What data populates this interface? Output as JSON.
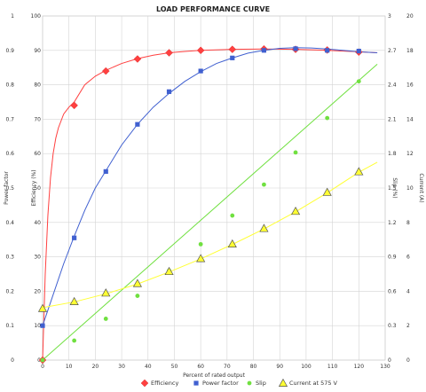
{
  "chart_data": {
    "type": "line",
    "title": "LOAD PERFORMANCE CURVE",
    "xlabel": "Percent of rated output",
    "x_ticks": [
      "0",
      "10",
      "20",
      "30",
      "40",
      "50",
      "60",
      "70",
      "80",
      "90",
      "100",
      "110",
      "120",
      "130"
    ],
    "xlim": [
      0,
      130
    ],
    "grid": true,
    "legend_position": "bottom",
    "axes": {
      "power_factor": {
        "label": "Power factor",
        "side": "left-outer",
        "range": [
          0,
          1
        ],
        "ticks": [
          "0",
          "0.1",
          "0.2",
          "0.3",
          "0.4",
          "0.5",
          "0.6",
          "0.7",
          "0.8",
          "0.9",
          "1"
        ]
      },
      "efficiency": {
        "label": "Efficiency (%)",
        "side": "left-inner",
        "range": [
          0,
          100
        ],
        "ticks": [
          "0",
          "10",
          "20",
          "30",
          "40",
          "50",
          "60",
          "70",
          "80",
          "90",
          "100"
        ]
      },
      "slip": {
        "label": "Slip (%)",
        "side": "right-inner",
        "range": [
          0,
          3
        ],
        "ticks": [
          "0",
          "0.3",
          "0.6",
          "0.9",
          "1.2",
          "1.5",
          "1.8",
          "2.1",
          "2.4",
          "2.7",
          "3"
        ]
      },
      "current": {
        "label": "Current (A)",
        "side": "right-outer",
        "range": [
          0,
          20
        ],
        "ticks": [
          "0",
          "2",
          "4",
          "6",
          "8",
          "10",
          "12",
          "14",
          "16",
          "18",
          "20"
        ]
      }
    },
    "series": [
      {
        "name": "Efficiency",
        "axis": "efficiency",
        "color": "#ff4040",
        "marker": "diamond",
        "x": [
          0,
          12,
          24,
          36,
          48,
          60,
          72,
          84,
          96,
          108,
          120
        ],
        "values": [
          0,
          74,
          84,
          87.5,
          89.3,
          90,
          90.3,
          90.4,
          90.3,
          90.1,
          89.5
        ],
        "curve_x": [
          0,
          1,
          2,
          3,
          4,
          5,
          6,
          8,
          10,
          12,
          16,
          20,
          24,
          30,
          36,
          42,
          48,
          54,
          60,
          72,
          84,
          96,
          108,
          120,
          127
        ],
        "curve_y": [
          0,
          25,
          42,
          53,
          60,
          64.5,
          67.5,
          71.5,
          73.5,
          75,
          80,
          82.5,
          84.2,
          86.2,
          87.6,
          88.6,
          89.3,
          89.7,
          90.0,
          90.3,
          90.4,
          90.3,
          90.0,
          89.6,
          89.3
        ]
      },
      {
        "name": "Power factor",
        "axis": "power_factor",
        "color": "#4060d0",
        "marker": "square",
        "x": [
          0,
          12,
          24,
          36,
          48,
          60,
          72,
          84,
          96,
          108,
          120
        ],
        "values": [
          0.1,
          0.355,
          0.548,
          0.685,
          0.78,
          0.84,
          0.878,
          0.9,
          0.905,
          0.9,
          0.898
        ],
        "curve_x": [
          0,
          4,
          8,
          12,
          16,
          20,
          24,
          30,
          36,
          42,
          48,
          54,
          60,
          66,
          72,
          78,
          84,
          90,
          96,
          102,
          108,
          114,
          120,
          127
        ],
        "curve_y": [
          0.1,
          0.19,
          0.28,
          0.36,
          0.435,
          0.5,
          0.55,
          0.625,
          0.685,
          0.735,
          0.775,
          0.81,
          0.838,
          0.862,
          0.878,
          0.892,
          0.9,
          0.906,
          0.908,
          0.907,
          0.904,
          0.9,
          0.896,
          0.893
        ]
      },
      {
        "name": "Slip",
        "axis": "slip",
        "color": "#70e040",
        "marker": "circle",
        "x": [
          0,
          12,
          24,
          36,
          48,
          60,
          72,
          84,
          96,
          108,
          120
        ],
        "values": [
          0,
          0.17,
          0.36,
          0.56,
          0.78,
          1.01,
          1.26,
          1.53,
          1.81,
          2.11,
          2.43
        ],
        "curve_x": [
          0,
          127
        ],
        "curve_y": [
          0,
          2.58
        ]
      },
      {
        "name": "Current at 575  V",
        "axis": "current",
        "color": "#ffff33",
        "marker": "triangle",
        "x": [
          0,
          12,
          24,
          36,
          48,
          60,
          72,
          84,
          96,
          108,
          120
        ],
        "values": [
          3,
          3.4,
          3.9,
          4.45,
          5.15,
          5.9,
          6.75,
          7.65,
          8.65,
          9.75,
          10.95
        ],
        "curve_x": [
          0,
          12,
          24,
          36,
          48,
          60,
          72,
          84,
          96,
          108,
          120,
          127
        ],
        "curve_y": [
          3.05,
          3.38,
          3.85,
          4.42,
          5.12,
          5.88,
          6.72,
          7.62,
          8.62,
          9.72,
          10.92,
          11.5
        ]
      }
    ]
  }
}
